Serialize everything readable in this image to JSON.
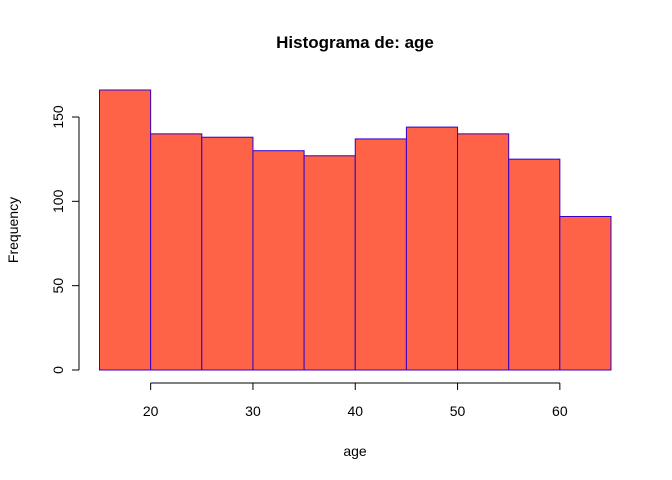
{
  "chart_data": {
    "type": "bar",
    "title": "Histograma de:  age",
    "xlabel": "age",
    "ylabel": "Frequency",
    "bins": [
      {
        "start": 15,
        "end": 20,
        "count": 166
      },
      {
        "start": 20,
        "end": 25,
        "count": 140
      },
      {
        "start": 25,
        "end": 30,
        "count": 138
      },
      {
        "start": 30,
        "end": 35,
        "count": 130
      },
      {
        "start": 35,
        "end": 40,
        "count": 127
      },
      {
        "start": 40,
        "end": 45,
        "count": 137
      },
      {
        "start": 45,
        "end": 50,
        "count": 144
      },
      {
        "start": 50,
        "end": 55,
        "count": 140
      },
      {
        "start": 55,
        "end": 60,
        "count": 125
      },
      {
        "start": 60,
        "end": 65,
        "count": 91
      }
    ],
    "xticks": [
      20,
      30,
      40,
      50,
      60
    ],
    "yticks": [
      0,
      50,
      100,
      150
    ],
    "xlim": [
      15,
      65
    ],
    "ylim": [
      0,
      166
    ],
    "colors": {
      "bar_fill": "#FF6347",
      "bar_border": "#3300CC"
    }
  }
}
